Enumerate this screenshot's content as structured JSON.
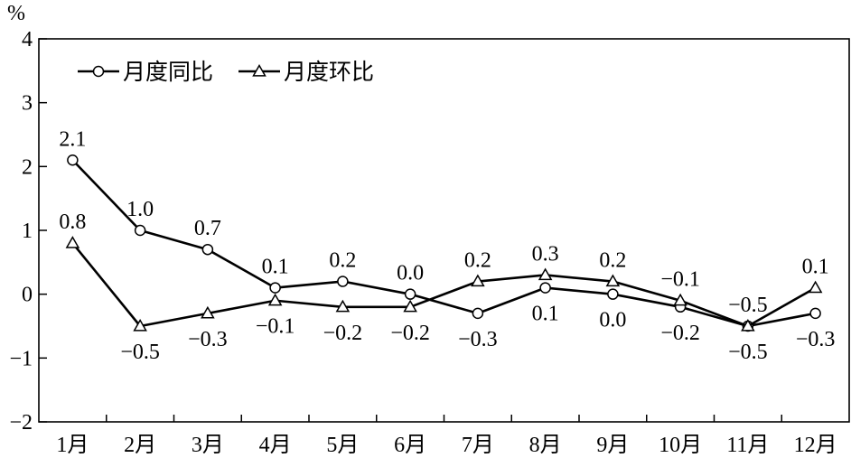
{
  "chart_data": {
    "type": "line",
    "unit_label": "%",
    "title": "",
    "xlabel": "",
    "ylabel": "%",
    "ylim": [
      -2,
      4
    ],
    "yticks": [
      -2,
      -1,
      0,
      1,
      2,
      3,
      4
    ],
    "grid": false,
    "legend_position": "top-left",
    "categories": [
      "1月",
      "2月",
      "3月",
      "4月",
      "5月",
      "6月",
      "7月",
      "8月",
      "9月",
      "10月",
      "11月",
      "12月"
    ],
    "series": [
      {
        "name": "月度同比",
        "marker": "circle",
        "values": [
          2.1,
          1.0,
          0.7,
          0.1,
          0.2,
          0.0,
          -0.3,
          0.1,
          0.0,
          -0.2,
          -0.5,
          -0.3
        ],
        "labels": [
          "2.1",
          "1.0",
          "0.7",
          "0.1",
          "0.2",
          "0.0",
          "−0.3",
          "0.1",
          "0.0",
          "−0.2",
          "−0.5",
          "−0.3"
        ],
        "label_positions": [
          "above",
          "above",
          "above",
          "above",
          "above",
          "above",
          "below",
          "below",
          "below",
          "below",
          "below",
          "below"
        ]
      },
      {
        "name": "月度环比",
        "marker": "triangle",
        "values": [
          0.8,
          -0.5,
          -0.3,
          -0.1,
          -0.2,
          -0.2,
          0.2,
          0.3,
          0.2,
          -0.1,
          -0.5,
          0.1
        ],
        "labels": [
          "0.8",
          "−0.5",
          "−0.3",
          "−0.1",
          "−0.2",
          "−0.2",
          "0.2",
          "0.3",
          "0.2",
          "−0.1",
          "−0.5",
          "0.1"
        ],
        "label_positions": [
          "above",
          "below",
          "below",
          "below",
          "below",
          "below",
          "above",
          "above",
          "above",
          "above",
          "above",
          "above"
        ]
      }
    ],
    "colors": {
      "line": "#000000",
      "marker_fill": "#ffffff",
      "background": "#ffffff"
    }
  }
}
